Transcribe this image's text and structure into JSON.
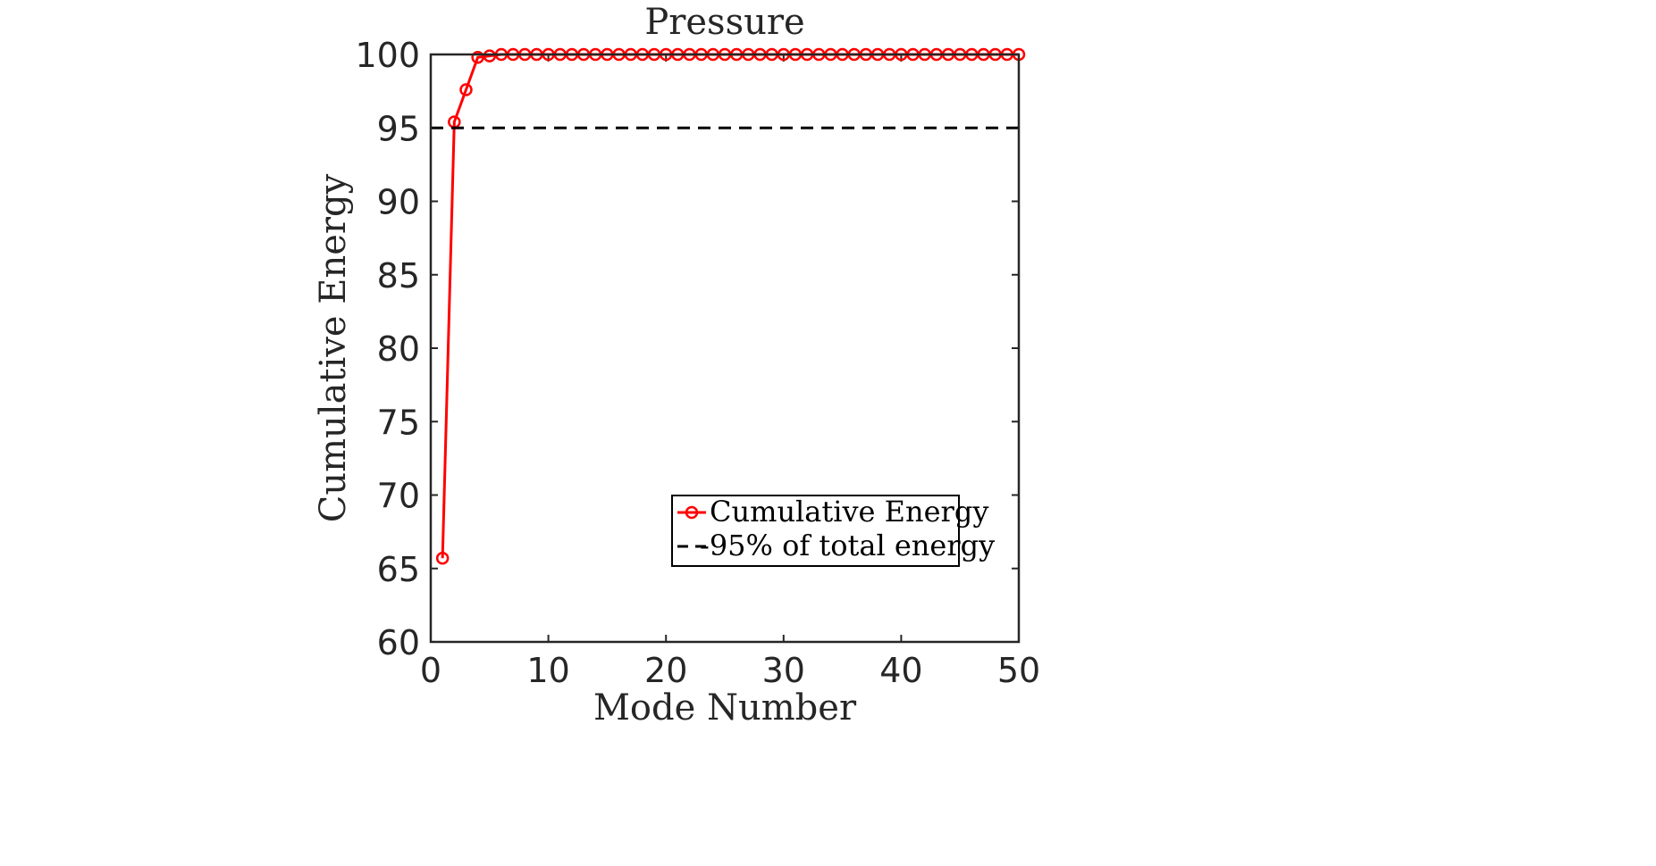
{
  "chart_data": {
    "type": "line",
    "title": "Pressure",
    "xlabel": "Mode Number",
    "ylabel": "Cumulative Energy",
    "xlim": [
      0,
      50
    ],
    "ylim": [
      60,
      100
    ],
    "x_ticks": [
      "0",
      "10",
      "20",
      "30",
      "40",
      "50"
    ],
    "y_ticks": [
      "60",
      "65",
      "70",
      "75",
      "80",
      "85",
      "90",
      "95",
      "100"
    ],
    "grid": false,
    "legend_position": "bottom-right",
    "series": [
      {
        "name": "Cumulative Energy",
        "color": "#ff0000",
        "style": "solid",
        "marker": "circle",
        "x": [
          1,
          2,
          3,
          4,
          5,
          6,
          7,
          8,
          9,
          10,
          11,
          12,
          13,
          14,
          15,
          16,
          17,
          18,
          19,
          20,
          21,
          22,
          23,
          24,
          25,
          26,
          27,
          28,
          29,
          30,
          31,
          32,
          33,
          34,
          35,
          36,
          37,
          38,
          39,
          40,
          41,
          42,
          43,
          44,
          45,
          46,
          47,
          48,
          49,
          50
        ],
        "y": [
          65.7,
          95.4,
          97.6,
          99.8,
          99.9,
          100,
          100,
          100,
          100,
          100,
          100,
          100,
          100,
          100,
          100,
          100,
          100,
          100,
          100,
          100,
          100,
          100,
          100,
          100,
          100,
          100,
          100,
          100,
          100,
          100,
          100,
          100,
          100,
          100,
          100,
          100,
          100,
          100,
          100,
          100,
          100,
          100,
          100,
          100,
          100,
          100,
          100,
          100,
          100,
          100
        ]
      },
      {
        "name": "-95% of total energy",
        "color": "#000000",
        "style": "dashed",
        "marker": "none",
        "x": [
          0,
          50
        ],
        "y": [
          95,
          95
        ]
      }
    ]
  }
}
